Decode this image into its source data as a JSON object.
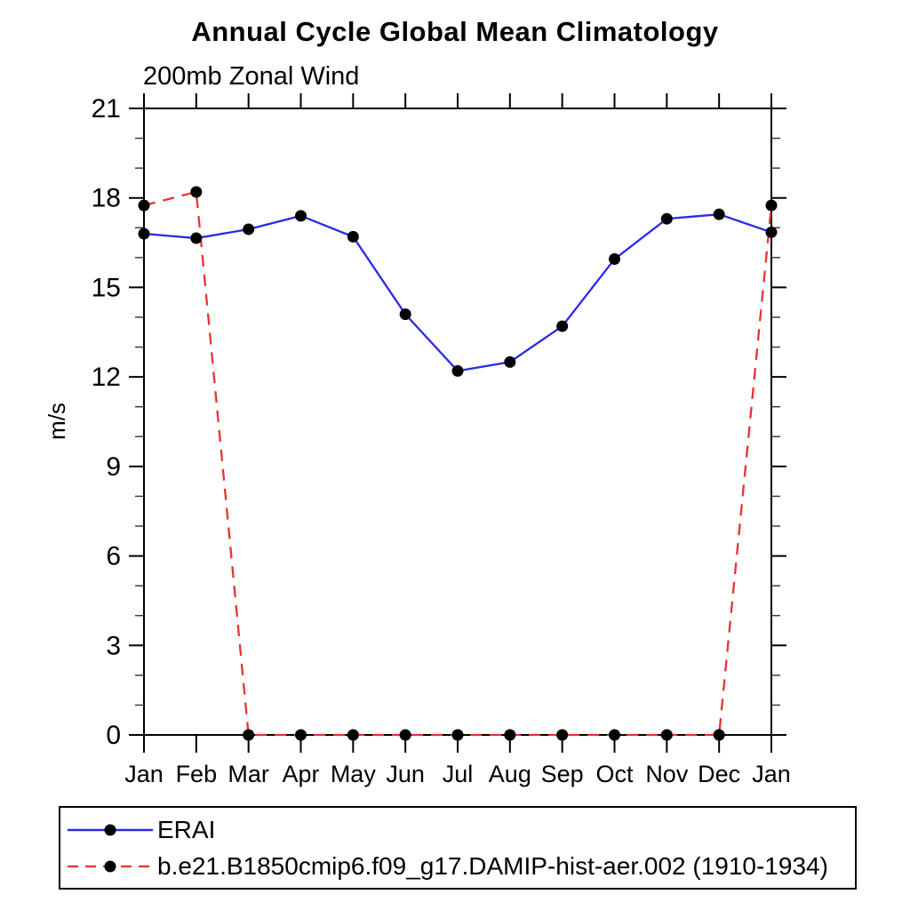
{
  "page": {
    "title": "Annual Cycle Global Mean Climatology",
    "subtitle": "200mb Zonal Wind"
  },
  "chart_data": {
    "type": "line",
    "title": "Annual Cycle Global Mean Climatology",
    "subtitle": "200mb Zonal Wind",
    "ylabel": "m/s",
    "xlabel": "",
    "categories": [
      "Jan",
      "Feb",
      "Mar",
      "Apr",
      "May",
      "Jun",
      "Jul",
      "Aug",
      "Sep",
      "Oct",
      "Nov",
      "Dec",
      "Jan"
    ],
    "ylim": [
      0,
      21
    ],
    "y_major_ticks": [
      0,
      3,
      6,
      9,
      12,
      15,
      18,
      21
    ],
    "y_minor_step": 1,
    "grid": false,
    "legend_position": "bottom-left-box",
    "marker": "filled-black-circle",
    "series": [
      {
        "name": "ERAI",
        "line_style": "solid",
        "color": "#2a2ae8",
        "marker_color": "#000000",
        "values": [
          16.8,
          16.65,
          16.95,
          17.4,
          16.7,
          14.1,
          12.2,
          12.5,
          13.7,
          15.95,
          17.3,
          17.45,
          16.85
        ]
      },
      {
        "name": "b.e21.B1850cmip6.f09_g17.DAMIP-hist-aer.002 (1910-1934)",
        "line_style": "dashed",
        "color": "#e83232",
        "marker_color": "#000000",
        "values": [
          17.75,
          18.2,
          0,
          0,
          0,
          0,
          0,
          0,
          0,
          0,
          0,
          0,
          17.75
        ]
      }
    ],
    "axis_color": "#000000"
  }
}
